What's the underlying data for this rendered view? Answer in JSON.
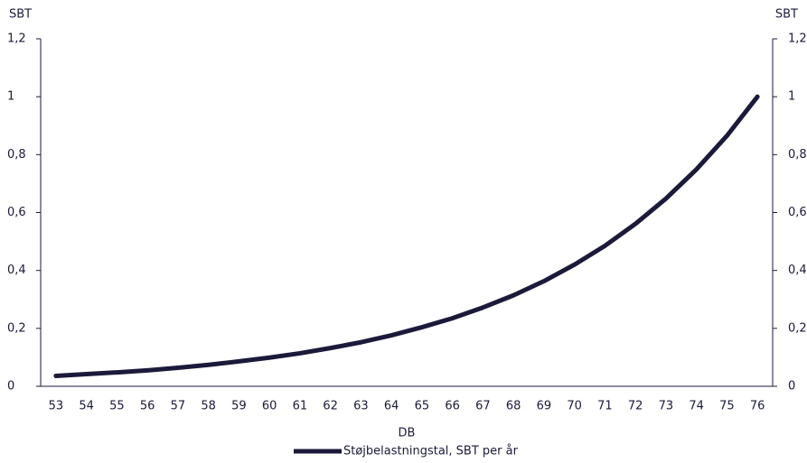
{
  "chart_data": {
    "type": "line",
    "y_axis_label": "SBT",
    "y2_axis_label": "SBT",
    "x_axis_label": "DB",
    "categories": [
      "53",
      "54",
      "55",
      "56",
      "57",
      "58",
      "59",
      "60",
      "61",
      "62",
      "63",
      "64",
      "65",
      "66",
      "67",
      "68",
      "69",
      "70",
      "71",
      "72",
      "73",
      "74",
      "75",
      "76"
    ],
    "series": [
      {
        "name": "Støjbelastningstal, SBT per år",
        "color": "#1b1a3a",
        "values": [
          0.036,
          0.042,
          0.048,
          0.055,
          0.064,
          0.074,
          0.086,
          0.099,
          0.114,
          0.132,
          0.152,
          0.176,
          0.204,
          0.235,
          0.272,
          0.314,
          0.363,
          0.42,
          0.485,
          0.561,
          0.648,
          0.749,
          0.865,
          1
        ]
      }
    ],
    "ylim": [
      0,
      1.2
    ],
    "yticks": [
      0,
      {
        "value": 0.2,
        "label": "0,2"
      },
      {
        "value": 0.4,
        "label": "0,4"
      },
      {
        "value": 0.6,
        "label": "0,6"
      },
      {
        "value": 0.8,
        "label": "0,8"
      },
      1,
      {
        "value": 1.2,
        "label": "1,2"
      }
    ],
    "y2lim": [
      0,
      1.2
    ],
    "y2ticks": [
      0,
      {
        "value": 0.2,
        "label": "0,2"
      },
      {
        "value": 0.4,
        "label": "0,4"
      },
      {
        "value": 0.6,
        "label": "0,6"
      },
      {
        "value": 0.8,
        "label": "0,8"
      },
      1,
      {
        "value": 1.2,
        "label": "1,2"
      }
    ],
    "grid": false
  }
}
